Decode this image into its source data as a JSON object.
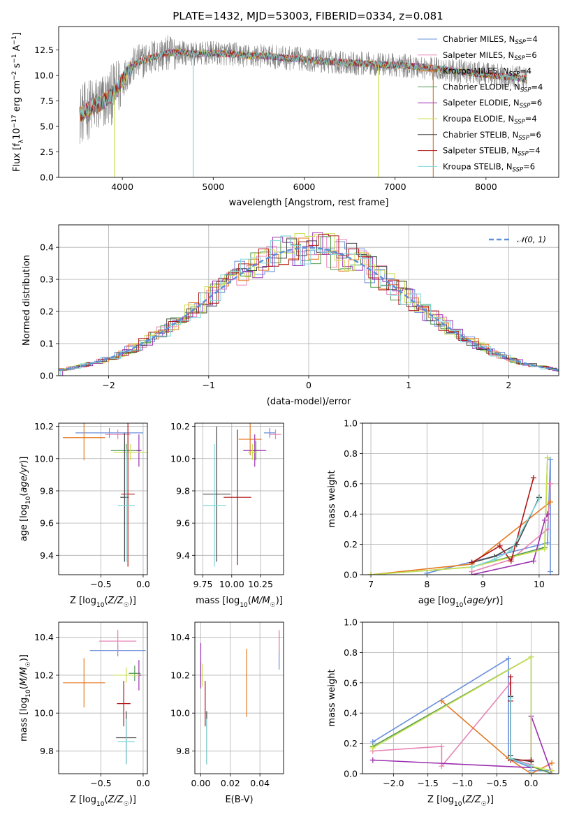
{
  "figure": {
    "title": "PLATE=1432, MJD=53003, FIBERID=0334, z=0.081"
  },
  "colors": {
    "Chabrier MILES": "#6a8fdc",
    "Salpeter MILES": "#e684b4",
    "Kroupa MILES": "#e57a22",
    "Chabrier ELODIE": "#4e9a4e",
    "Salpeter ELODIE": "#9a2fb0",
    "Kroupa ELODIE": "#c9e04f",
    "Chabrier STELIB": "#444444",
    "Salpeter STELIB": "#b01515",
    "Kroupa STELIB": "#7fd7db",
    "data": "#808080",
    "normal": "#5b8fd6"
  },
  "chart_data": [
    {
      "id": "spectrum",
      "type": "line",
      "title": "PLATE=1432, MJD=53003, FIBERID=0334, z=0.081",
      "xlabel": "wavelength [Angstrom, rest frame]",
      "ylabel": "Flux [f_λ 10^-17 erg cm^-2 s^-1 A^-1]",
      "xlim": [
        3300,
        8800
      ],
      "ylim": [
        0,
        14.8
      ],
      "xticks": [
        "4000",
        "5000",
        "6000",
        "7000",
        "8000"
      ],
      "yticks": [
        "0.0",
        "2.5",
        "5.0",
        "7.5",
        "10.0",
        "12.5"
      ],
      "grid": false,
      "legend_position": "right",
      "continuum_x": [
        3550,
        3650,
        3750,
        3850,
        3950,
        4050,
        4150,
        4300,
        4450,
        4600,
        4800,
        5000,
        5200,
        5400,
        5600,
        5800,
        6000,
        6200,
        6400,
        6600,
        6800,
        7000,
        7200,
        7400,
        7600,
        7800,
        8000,
        8200,
        8400,
        8600,
        8800
      ],
      "continuum_y": [
        6.2,
        6.8,
        7.2,
        7.8,
        8.7,
        10.3,
        11.2,
        11.7,
        12.1,
        12.3,
        12.1,
        12.2,
        12.1,
        11.9,
        11.9,
        11.7,
        11.6,
        11.4,
        11.3,
        11.2,
        11.1,
        11.0,
        10.9,
        10.7,
        10.5,
        10.3,
        10.1,
        9.9,
        9.7,
        9.5,
        9.3
      ],
      "series": [
        {
          "name": "Chabrier MILES, N_SSP=4",
          "color": "#6a8fdc"
        },
        {
          "name": "Salpeter MILES, N_SSP=6",
          "color": "#e684b4"
        },
        {
          "name": "Kroupa MILES, N_SSP=4",
          "color": "#e57a22"
        },
        {
          "name": "Chabrier ELODIE, N_SSP=4",
          "color": "#4e9a4e"
        },
        {
          "name": "Salpeter ELODIE, N_SSP=6",
          "color": "#9a2fb0"
        },
        {
          "name": "Kroupa ELODIE, N_SSP=4",
          "color": "#c9e04f"
        },
        {
          "name": "Chabrier STELIB, N_SSP=6",
          "color": "#444444"
        },
        {
          "name": "Salpeter STELIB, N_SSP=4",
          "color": "#b01515"
        },
        {
          "name": "Kroupa STELIB, N_SSP=6",
          "color": "#7fd7db"
        }
      ]
    },
    {
      "id": "residuals",
      "type": "line",
      "xlabel": "(data-model)/error",
      "ylabel": "Normed distribution",
      "xlim": [
        -2.5,
        2.5
      ],
      "ylim": [
        0,
        0.47
      ],
      "xticks": [
        "−2",
        "−1",
        "0",
        "1",
        "2"
      ],
      "yticks": [
        "0.0",
        "0.1",
        "0.2",
        "0.3",
        "0.4"
      ],
      "grid": true,
      "legend_position": "top-right",
      "legend_label": "𝒩(0, 1)",
      "histogram_bin_width": 0.1,
      "histogram_series_colors": [
        "#6a8fdc",
        "#e684b4",
        "#e57a22",
        "#4e9a4e",
        "#9a2fb0",
        "#c9e04f",
        "#444444",
        "#b01515",
        "#7fd7db"
      ]
    },
    {
      "id": "age_vs_Z",
      "type": "scatter",
      "xlabel": "Z [log10(Z/Z☉)]",
      "ylabel": "age  [log10(age/yr)]",
      "xlim": [
        -1.0,
        0.05
      ],
      "ylim": [
        9.28,
        10.22
      ],
      "xticks": [
        "−0.5",
        "0.0"
      ],
      "xtick_values": [
        -0.5,
        0.0
      ],
      "yticks": [
        "9.4",
        "9.6",
        "9.8",
        "10.0",
        "10.2"
      ],
      "ytick_values": [
        9.4,
        9.6,
        9.8,
        10.0,
        10.2
      ],
      "grid": true,
      "points": [
        {
          "x": -0.4,
          "y": 10.16,
          "xerr": 0.4,
          "yerr": 0.03,
          "color": "#6a8fdc"
        },
        {
          "x": -0.3,
          "y": 10.15,
          "xerr": 0.15,
          "yerr": 0.03,
          "color": "#e684b4"
        },
        {
          "x": -0.7,
          "y": 10.13,
          "xerr": 0.25,
          "yerr": 0.14,
          "color": "#e57a22"
        },
        {
          "x": -0.2,
          "y": 10.05,
          "xerr": 0.18,
          "yerr": 0.04,
          "color": "#4e9a4e"
        },
        {
          "x": -0.05,
          "y": 10.05,
          "xerr": 0.03,
          "yerr": 0.1,
          "color": "#9a2fb0"
        },
        {
          "x": -0.15,
          "y": 10.04,
          "xerr": 0.2,
          "yerr": 0.05,
          "color": "#c9e04f"
        },
        {
          "x": -0.22,
          "y": 9.76,
          "xerr": 0.05,
          "yerr": 0.4,
          "color": "#444444"
        },
        {
          "x": -0.18,
          "y": 9.78,
          "xerr": 0.08,
          "yerr": 0.45,
          "color": "#b01515"
        },
        {
          "x": -0.2,
          "y": 9.71,
          "xerr": 0.1,
          "yerr": 0.35,
          "color": "#7fd7db"
        }
      ]
    },
    {
      "id": "age_vs_mass",
      "type": "scatter",
      "xlabel": "mass [log10(M/M☉)]",
      "ylabel": "",
      "xlim": [
        9.68,
        10.45
      ],
      "ylim": [
        9.28,
        10.22
      ],
      "xticks": [
        "9.75",
        "10.00",
        "10.25"
      ],
      "xtick_values": [
        9.75,
        10.0,
        10.25
      ],
      "yticks": [
        "9.4",
        "9.6",
        "9.8",
        "10.0",
        "10.2"
      ],
      "ytick_values": [
        9.4,
        9.6,
        9.8,
        10.0,
        10.2
      ],
      "grid": true,
      "points": [
        {
          "x": 10.33,
          "y": 10.16,
          "xerr": 0.05,
          "yerr": 0.03,
          "color": "#6a8fdc"
        },
        {
          "x": 10.38,
          "y": 10.15,
          "xerr": 0.05,
          "yerr": 0.03,
          "color": "#e684b4"
        },
        {
          "x": 10.16,
          "y": 10.12,
          "xerr": 0.1,
          "yerr": 0.1,
          "color": "#e57a22"
        },
        {
          "x": 10.21,
          "y": 10.05,
          "xerr": 0.03,
          "yerr": 0.06,
          "color": "#4e9a4e"
        },
        {
          "x": 10.2,
          "y": 10.05,
          "xerr": 0.1,
          "yerr": 0.1,
          "color": "#9a2fb0"
        },
        {
          "x": 10.18,
          "y": 10.04,
          "xerr": 0.04,
          "yerr": 0.05,
          "color": "#c9e04f"
        },
        {
          "x": 9.87,
          "y": 9.78,
          "xerr": 0.12,
          "yerr": 0.42,
          "color": "#444444"
        },
        {
          "x": 10.05,
          "y": 9.76,
          "xerr": 0.12,
          "yerr": 0.42,
          "color": "#b01515"
        },
        {
          "x": 9.85,
          "y": 9.71,
          "xerr": 0.1,
          "yerr": 0.38,
          "color": "#7fd7db"
        }
      ]
    },
    {
      "id": "massweight_vs_age",
      "type": "line",
      "xlabel": "age  [log10(age/yr)]",
      "ylabel": "mass weight",
      "xlim": [
        6.85,
        10.35
      ],
      "ylim": [
        0,
        1.0
      ],
      "xticks": [
        "7",
        "8",
        "9",
        "10"
      ],
      "xtick_values": [
        7,
        8,
        9,
        10
      ],
      "yticks": [
        "0.0",
        "0.2",
        "0.4",
        "0.6",
        "0.8",
        "1.0"
      ],
      "ytick_values": [
        0,
        0.2,
        0.4,
        0.6,
        0.8,
        1.0
      ],
      "grid": true,
      "series": [
        {
          "color": "#6a8fdc",
          "x": [
            8.0,
            10.15,
            10.2,
            10.2
          ],
          "y": [
            0.01,
            0.21,
            0.76,
            0.02
          ]
        },
        {
          "color": "#e684b4",
          "x": [
            8.8,
            9.5,
            10.15,
            10.2
          ],
          "y": [
            0.02,
            0.1,
            0.3,
            0.6
          ]
        },
        {
          "color": "#e57a22",
          "x": [
            7.0,
            8.8,
            10.2
          ],
          "y": [
            0.0,
            0.07,
            0.48
          ]
        },
        {
          "color": "#4e9a4e",
          "x": [
            7.0,
            8.8,
            10.1,
            10.15
          ],
          "y": [
            0.0,
            0.05,
            0.18,
            0.77
          ]
        },
        {
          "color": "#9a2fb0",
          "x": [
            8.8,
            9.9,
            10.1,
            10.15
          ],
          "y": [
            0.0,
            0.09,
            0.36,
            0.4
          ]
        },
        {
          "color": "#c9e04f",
          "x": [
            7.0,
            8.8,
            10.1,
            10.15
          ],
          "y": [
            0.0,
            0.05,
            0.17,
            0.77
          ]
        },
        {
          "color": "#444444",
          "x": [
            8.8,
            9.2,
            9.6,
            10.0
          ],
          "y": [
            0.08,
            0.12,
            0.2,
            0.51
          ]
        },
        {
          "color": "#b01515",
          "x": [
            8.8,
            9.3,
            9.5,
            9.9
          ],
          "y": [
            0.08,
            0.19,
            0.09,
            0.64
          ]
        },
        {
          "color": "#7fd7db",
          "x": [
            8.8,
            9.2,
            9.5,
            10.0
          ],
          "y": [
            0.05,
            0.1,
            0.16,
            0.5
          ]
        }
      ]
    },
    {
      "id": "mass_vs_Z",
      "type": "scatter",
      "xlabel": "Z [log10(Z/Z☉)]",
      "ylabel": "mass [log10(M/M☉)]",
      "xlim": [
        -1.0,
        0.05
      ],
      "ylim": [
        9.68,
        10.48
      ],
      "xticks": [
        "−0.5",
        "0.0"
      ],
      "xtick_values": [
        -0.5,
        0.0
      ],
      "yticks": [
        "9.8",
        "10.0",
        "10.2",
        "10.4"
      ],
      "ytick_values": [
        9.8,
        10.0,
        10.2,
        10.4
      ],
      "grid": true,
      "points": [
        {
          "x": -0.3,
          "y": 10.33,
          "xerr": 0.33,
          "yerr": 0.03,
          "color": "#6a8fdc"
        },
        {
          "x": -0.3,
          "y": 10.38,
          "xerr": 0.22,
          "yerr": 0.06,
          "color": "#e684b4"
        },
        {
          "x": -0.7,
          "y": 10.16,
          "xerr": 0.25,
          "yerr": 0.13,
          "color": "#e57a22"
        },
        {
          "x": -0.1,
          "y": 10.21,
          "xerr": 0.07,
          "yerr": 0.04,
          "color": "#4e9a4e"
        },
        {
          "x": -0.05,
          "y": 10.2,
          "xerr": 0.03,
          "yerr": 0.08,
          "color": "#9a2fb0"
        },
        {
          "x": -0.2,
          "y": 10.2,
          "xerr": 0.15,
          "yerr": 0.04,
          "color": "#c9e04f"
        },
        {
          "x": -0.2,
          "y": 9.87,
          "xerr": 0.12,
          "yerr": 0.14,
          "color": "#444444"
        },
        {
          "x": -0.23,
          "y": 10.05,
          "xerr": 0.08,
          "yerr": 0.12,
          "color": "#b01515"
        },
        {
          "x": -0.2,
          "y": 9.85,
          "xerr": 0.1,
          "yerr": 0.12,
          "color": "#7fd7db"
        }
      ]
    },
    {
      "id": "mass_vs_EBV",
      "type": "scatter",
      "xlabel": "E(B-V)",
      "ylabel": "",
      "xlim": [
        -0.004,
        0.056
      ],
      "ylim": [
        9.68,
        10.48
      ],
      "xticks": [
        "0.00",
        "0.02",
        "0.04"
      ],
      "xtick_values": [
        0.0,
        0.02,
        0.04
      ],
      "yticks": [
        "9.8",
        "10.0",
        "10.2",
        "10.4"
      ],
      "ytick_values": [
        9.8,
        10.0,
        10.2,
        10.4
      ],
      "grid": true,
      "points": [
        {
          "x": 0.053,
          "y": 10.33,
          "xerr": 0,
          "yerr": 0.1,
          "color": "#6a8fdc"
        },
        {
          "x": 0.053,
          "y": 10.38,
          "xerr": 0,
          "yerr": 0.06,
          "color": "#e684b4"
        },
        {
          "x": 0.031,
          "y": 10.16,
          "xerr": 0,
          "yerr": 0.18,
          "color": "#e57a22"
        },
        {
          "x": 0.0,
          "y": 10.21,
          "xerr": 0,
          "yerr": 0.06,
          "color": "#4e9a4e"
        },
        {
          "x": 0.0,
          "y": 10.25,
          "xerr": 0,
          "yerr": 0.12,
          "color": "#9a2fb0"
        },
        {
          "x": 0.001,
          "y": 10.2,
          "xerr": 0,
          "yerr": 0.06,
          "color": "#c9e04f"
        },
        {
          "x": 0.004,
          "y": 9.87,
          "xerr": 0,
          "yerr": 0.14,
          "color": "#444444"
        },
        {
          "x": 0.003,
          "y": 10.05,
          "xerr": 0,
          "yerr": 0.12,
          "color": "#b01515"
        },
        {
          "x": 0.004,
          "y": 9.85,
          "xerr": 0,
          "yerr": 0.12,
          "color": "#7fd7db"
        }
      ]
    },
    {
      "id": "massweight_vs_Z",
      "type": "line",
      "xlabel": "Z [log10(Z/Z☉)]",
      "ylabel": "mass weight",
      "xlim": [
        -2.45,
        0.4
      ],
      "ylim": [
        0,
        1.0
      ],
      "xticks": [
        "−2.0",
        "−1.5",
        "−1.0",
        "−0.5",
        "0.0"
      ],
      "xtick_values": [
        -2.0,
        -1.5,
        -1.0,
        -0.5,
        0.0
      ],
      "yticks": [
        "0.0",
        "0.2",
        "0.4",
        "0.6",
        "0.8",
        "1.0"
      ],
      "ytick_values": [
        0,
        0.2,
        0.4,
        0.6,
        0.8,
        1.0
      ],
      "grid": true,
      "series": [
        {
          "color": "#6a8fdc",
          "x": [
            -2.3,
            -0.33,
            -0.33,
            0.0,
            0.0,
            0.3
          ],
          "y": [
            0.21,
            0.76,
            0.1,
            0.04,
            0.02,
            0.02
          ]
        },
        {
          "color": "#e684b4",
          "x": [
            -2.3,
            -1.3,
            -1.3,
            -0.3,
            -0.3,
            0.0
          ],
          "y": [
            0.15,
            0.18,
            0.05,
            0.6,
            0.1,
            0.06
          ]
        },
        {
          "color": "#e57a22",
          "x": [
            -1.3,
            -0.33,
            0.0,
            0.3
          ],
          "y": [
            0.48,
            0.1,
            0.0,
            0.07
          ]
        },
        {
          "color": "#4e9a4e",
          "x": [
            -2.3,
            0.0,
            0.0,
            0.3
          ],
          "y": [
            0.18,
            0.77,
            0.05,
            0.0
          ]
        },
        {
          "color": "#9a2fb0",
          "x": [
            -2.3,
            0.0,
            0.0,
            0.3
          ],
          "y": [
            0.09,
            0.04,
            0.38,
            0.0
          ]
        },
        {
          "color": "#c9e04f",
          "x": [
            -2.3,
            0.0,
            0.0,
            0.3
          ],
          "y": [
            0.17,
            0.77,
            0.05,
            0.02
          ]
        },
        {
          "color": "#444444",
          "x": [
            -0.3,
            -0.3,
            -0.3,
            0.0
          ],
          "y": [
            0.51,
            0.12,
            0.1,
            0.08
          ]
        },
        {
          "color": "#b01515",
          "x": [
            -0.3,
            -0.3,
            -0.3,
            0.0
          ],
          "y": [
            0.64,
            0.48,
            0.09,
            0.09
          ]
        },
        {
          "color": "#7fd7db",
          "x": [
            -0.3,
            -0.3,
            0.0,
            0.0
          ],
          "y": [
            0.5,
            0.1,
            0.05,
            0.0
          ]
        }
      ]
    }
  ]
}
